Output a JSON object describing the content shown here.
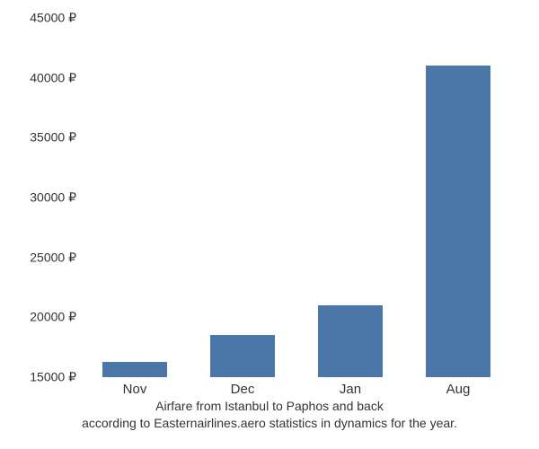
{
  "chart": {
    "type": "bar",
    "categories": [
      "Nov",
      "Dec",
      "Jan",
      "Aug"
    ],
    "values": [
      16300,
      18500,
      21000,
      41000
    ],
    "bar_color": "#4a76a8",
    "background_color": "#ffffff",
    "ylim": [
      15000,
      45000
    ],
    "yticks": [
      15000,
      20000,
      25000,
      30000,
      35000,
      40000,
      45000
    ],
    "ytick_labels": [
      "15000 ₽",
      "20000 ₽",
      "25000 ₽",
      "30000 ₽",
      "35000 ₽",
      "40000 ₽",
      "45000 ₽"
    ],
    "bar_width_pct": 15,
    "bar_gap_pct": 10,
    "caption_line1": "Airfare from Istanbul to Paphos and back",
    "caption_line2": "according to Easternairlines.aero statistics in dynamics for the year.",
    "tick_fontsize": 14,
    "caption_fontsize": 14
  }
}
